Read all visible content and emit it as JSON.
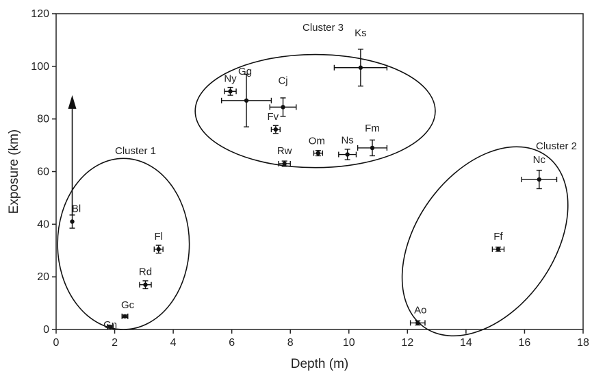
{
  "chart_data": {
    "type": "scatter",
    "xlabel": "Depth (m)",
    "ylabel": "Exposure (km)",
    "xlim": [
      0,
      18
    ],
    "ylim": [
      0,
      120
    ],
    "xticks": [
      0,
      2,
      4,
      6,
      8,
      10,
      12,
      14,
      16,
      18
    ],
    "yticks": [
      0,
      20,
      40,
      60,
      80,
      100,
      120
    ],
    "grid": false,
    "points": [
      {
        "label": "Bl",
        "x": 0.55,
        "y": 41.0,
        "xerr": 0.0,
        "yerr": 2.5
      },
      {
        "label": "Fl",
        "x": 3.5,
        "y": 30.5,
        "xerr": 0.15,
        "yerr": 1.5
      },
      {
        "label": "Rd",
        "x": 3.05,
        "y": 17.0,
        "xerr": 0.2,
        "yerr": 1.5
      },
      {
        "label": "Gc",
        "x": 2.35,
        "y": 5.0,
        "xerr": 0.1,
        "yerr": 0.5
      },
      {
        "label": "Gn",
        "x": 1.85,
        "y": 1.0,
        "xerr": 0.1,
        "yerr": 0.5
      },
      {
        "label": "Ny",
        "x": 5.95,
        "y": 90.5,
        "xerr": 0.2,
        "yerr": 1.5
      },
      {
        "label": "Gg",
        "x": 6.5,
        "y": 87.0,
        "xerr": 0.85,
        "yerr": 10.0
      },
      {
        "label": "Cj",
        "x": 7.75,
        "y": 84.5,
        "xerr": 0.45,
        "yerr": 3.5
      },
      {
        "label": "Fv",
        "x": 7.5,
        "y": 76.0,
        "xerr": 0.15,
        "yerr": 1.5
      },
      {
        "label": "Rw",
        "x": 7.8,
        "y": 63.0,
        "xerr": 0.2,
        "yerr": 1.0
      },
      {
        "label": "Om",
        "x": 8.95,
        "y": 67.0,
        "xerr": 0.15,
        "yerr": 1.0
      },
      {
        "label": "Ns",
        "x": 9.95,
        "y": 66.5,
        "xerr": 0.3,
        "yerr": 2.0
      },
      {
        "label": "Fm",
        "x": 10.8,
        "y": 69.0,
        "xerr": 0.5,
        "yerr": 3.0
      },
      {
        "label": "Ks",
        "x": 10.4,
        "y": 99.5,
        "xerr": 0.9,
        "yerr": 7.0
      },
      {
        "label": "Nc",
        "x": 16.5,
        "y": 57.0,
        "xerr": 0.6,
        "yerr": 3.5
      },
      {
        "label": "Ff",
        "x": 15.1,
        "y": 30.5,
        "xerr": 0.2,
        "yerr": 0.8
      },
      {
        "label": "Ao",
        "x": 12.35,
        "y": 2.5,
        "xerr": 0.25,
        "yerr": 0.8
      }
    ],
    "clusters": [
      {
        "name": "Cluster 1",
        "cx": 2.3,
        "cy": 32.5,
        "rx": 2.25,
        "ry": 32.5,
        "angle": 0
      },
      {
        "name": "Cluster 2",
        "cx": 14.65,
        "cy": 33.5,
        "rx": 2.35,
        "ry": 40.0,
        "angle": 0.62
      },
      {
        "name": "Cluster 3",
        "cx": 8.85,
        "cy": 83.0,
        "rx": 4.1,
        "ry": 21.5,
        "angle": 0
      }
    ],
    "annotations": [
      {
        "type": "arrow",
        "x": 0.55,
        "y_start": 43.5,
        "y_end": 88.0
      }
    ]
  }
}
